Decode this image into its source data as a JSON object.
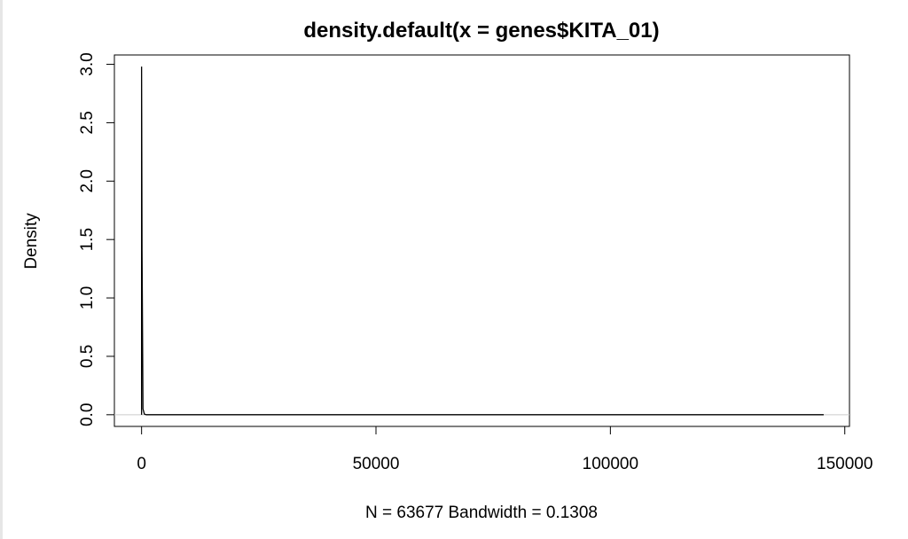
{
  "chart_data": {
    "type": "line",
    "title": "density.default(x = genes$KITA_01)",
    "xlabel": "N = 63677   Bandwidth = 0.1308",
    "ylabel": "Density",
    "xlim": [
      -5800,
      151000
    ],
    "ylim": [
      -0.1,
      3.08
    ],
    "x_ticks": [
      0,
      50000,
      100000,
      150000
    ],
    "x_tick_labels": [
      "0",
      "50000",
      "100000",
      "150000"
    ],
    "y_ticks": [
      0,
      0.5,
      1.0,
      1.5,
      2.0,
      2.5,
      3.0
    ],
    "y_tick_labels": [
      "0.0",
      "0.5",
      "1.0",
      "1.5",
      "2.0",
      "2.5",
      "3.0"
    ],
    "grid": false,
    "legend": "none",
    "line_color": "#000000",
    "baseline_color": "#cccccc",
    "series": [
      {
        "x": [
          -0.4,
          0,
          100,
          300,
          600,
          1000,
          5000,
          20000,
          50000,
          100000,
          145500
        ],
        "y": [
          0.0,
          2.98,
          1.4,
          0.05,
          0.005,
          0.0,
          0.0,
          0.0,
          0.0,
          0.0,
          0.0
        ]
      }
    ]
  }
}
